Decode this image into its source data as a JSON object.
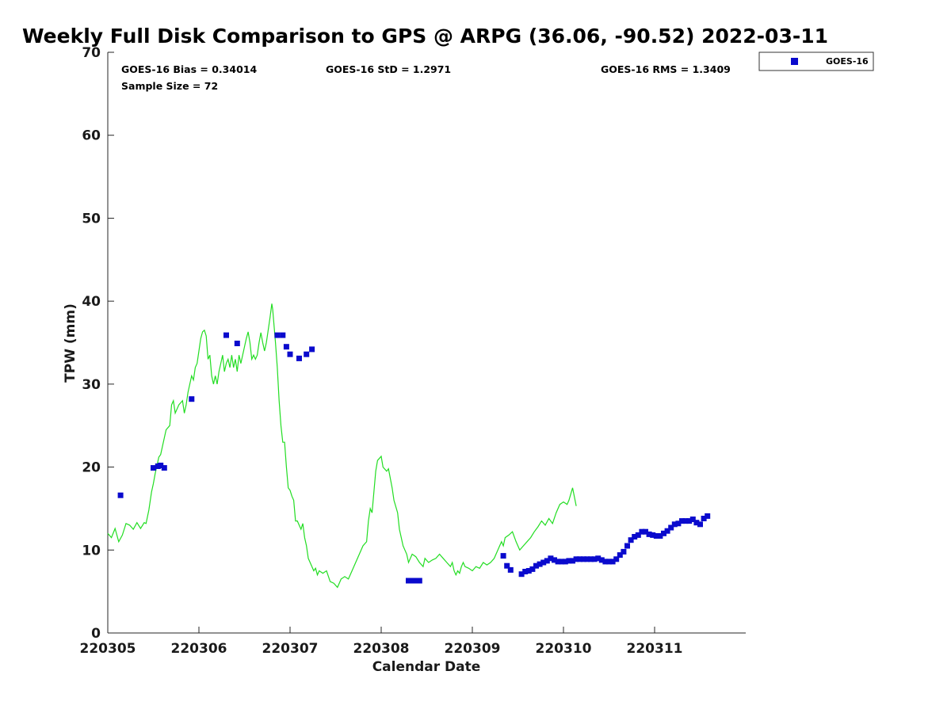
{
  "chart_data": {
    "type": "scatter",
    "title": "Weekly Full Disk Comparison to GPS @ ARPG (36.06, -90.52) 2022-03-11",
    "xlabel": "Calendar Date",
    "ylabel": "TPW (mm)",
    "xlim": [
      0,
      7
    ],
    "ylim": [
      0,
      70
    ],
    "yticks": [
      0,
      10,
      20,
      30,
      40,
      50,
      60,
      70
    ],
    "xticks": [
      {
        "value": 0,
        "label": "220305"
      },
      {
        "value": 1,
        "label": "220306"
      },
      {
        "value": 2,
        "label": "220307"
      },
      {
        "value": 3,
        "label": "220308"
      },
      {
        "value": 4,
        "label": "220309"
      },
      {
        "value": 5,
        "label": "220310"
      },
      {
        "value": 6,
        "label": "220311"
      }
    ],
    "stats": {
      "bias": "GOES-16 Bias = 0.34014",
      "std": "GOES-16 StD = 1.2971",
      "rms": "GOES-16 RMS = 1.3409",
      "sample_size": "Sample Size = 72"
    },
    "legend": {
      "placement": "top-right-outside",
      "entries": [
        {
          "name": "GOES-16",
          "color": "#0000cc",
          "marker": "square"
        }
      ]
    },
    "colors": {
      "goes": "#0a0acd",
      "gps_line": "#22dd22"
    },
    "gps_line": [
      [
        0.0,
        12.0
      ],
      [
        0.04,
        11.5
      ],
      [
        0.08,
        12.6
      ],
      [
        0.12,
        11.0
      ],
      [
        0.16,
        11.8
      ],
      [
        0.2,
        13.2
      ],
      [
        0.24,
        13.0
      ],
      [
        0.28,
        12.5
      ],
      [
        0.32,
        13.3
      ],
      [
        0.36,
        12.6
      ],
      [
        0.4,
        13.3
      ],
      [
        0.42,
        13.2
      ],
      [
        0.45,
        14.8
      ],
      [
        0.48,
        17.0
      ],
      [
        0.5,
        18.0
      ],
      [
        0.52,
        19.2
      ],
      [
        0.54,
        20.2
      ],
      [
        0.56,
        21.2
      ],
      [
        0.58,
        21.5
      ],
      [
        0.6,
        22.5
      ],
      [
        0.62,
        23.5
      ],
      [
        0.64,
        24.5
      ],
      [
        0.68,
        25.0
      ],
      [
        0.7,
        27.5
      ],
      [
        0.72,
        28.0
      ],
      [
        0.74,
        26.5
      ],
      [
        0.78,
        27.5
      ],
      [
        0.82,
        28.0
      ],
      [
        0.84,
        26.5
      ],
      [
        0.86,
        27.5
      ],
      [
        0.88,
        29.0
      ],
      [
        0.9,
        30.0
      ],
      [
        0.92,
        31.0
      ],
      [
        0.94,
        30.5
      ],
      [
        0.96,
        32.0
      ],
      [
        0.98,
        32.5
      ],
      [
        1.0,
        34.0
      ],
      [
        1.02,
        35.5
      ],
      [
        1.04,
        36.3
      ],
      [
        1.06,
        36.5
      ],
      [
        1.08,
        35.8
      ],
      [
        1.1,
        33.0
      ],
      [
        1.12,
        33.5
      ],
      [
        1.14,
        31.0
      ],
      [
        1.16,
        30.0
      ],
      [
        1.18,
        31.0
      ],
      [
        1.2,
        30.0
      ],
      [
        1.22,
        31.5
      ],
      [
        1.24,
        32.5
      ],
      [
        1.26,
        33.5
      ],
      [
        1.28,
        31.5
      ],
      [
        1.3,
        32.5
      ],
      [
        1.32,
        33.0
      ],
      [
        1.34,
        32.0
      ],
      [
        1.36,
        33.5
      ],
      [
        1.38,
        32.0
      ],
      [
        1.4,
        33.0
      ],
      [
        1.42,
        31.5
      ],
      [
        1.44,
        33.5
      ],
      [
        1.46,
        32.5
      ],
      [
        1.48,
        33.5
      ],
      [
        1.5,
        34.5
      ],
      [
        1.52,
        35.5
      ],
      [
        1.54,
        36.3
      ],
      [
        1.56,
        35.0
      ],
      [
        1.58,
        33.0
      ],
      [
        1.6,
        33.5
      ],
      [
        1.62,
        33.0
      ],
      [
        1.64,
        33.5
      ],
      [
        1.66,
        35.0
      ],
      [
        1.68,
        36.2
      ],
      [
        1.7,
        35.0
      ],
      [
        1.72,
        34.0
      ],
      [
        1.74,
        35.0
      ],
      [
        1.76,
        36.5
      ],
      [
        1.78,
        38.0
      ],
      [
        1.8,
        39.7
      ],
      [
        1.81,
        39.0
      ],
      [
        1.84,
        35.0
      ],
      [
        1.86,
        32.0
      ],
      [
        1.88,
        28.0
      ],
      [
        1.9,
        25.0
      ],
      [
        1.92,
        23.0
      ],
      [
        1.94,
        23.0
      ],
      [
        1.96,
        20.0
      ],
      [
        1.98,
        17.5
      ],
      [
        2.0,
        17.2
      ],
      [
        2.02,
        16.5
      ],
      [
        2.04,
        16.0
      ],
      [
        2.06,
        13.5
      ],
      [
        2.08,
        13.5
      ],
      [
        2.1,
        13.0
      ],
      [
        2.12,
        12.5
      ],
      [
        2.14,
        13.2
      ],
      [
        2.16,
        11.5
      ],
      [
        2.18,
        10.5
      ],
      [
        2.2,
        9.0
      ],
      [
        2.22,
        8.5
      ],
      [
        2.24,
        8.0
      ],
      [
        2.26,
        7.5
      ],
      [
        2.28,
        7.8
      ],
      [
        2.3,
        7.0
      ],
      [
        2.32,
        7.5
      ],
      [
        2.36,
        7.2
      ],
      [
        2.4,
        7.5
      ],
      [
        2.44,
        6.2
      ],
      [
        2.48,
        6.0
      ],
      [
        2.52,
        5.5
      ],
      [
        2.54,
        6.0
      ],
      [
        2.56,
        6.5
      ],
      [
        2.6,
        6.8
      ],
      [
        2.64,
        6.5
      ],
      [
        2.68,
        7.5
      ],
      [
        2.72,
        8.5
      ],
      [
        2.76,
        9.5
      ],
      [
        2.8,
        10.5
      ],
      [
        2.84,
        11.0
      ],
      [
        2.86,
        13.5
      ],
      [
        2.88,
        15.0
      ],
      [
        2.9,
        14.5
      ],
      [
        2.92,
        17.0
      ],
      [
        2.94,
        19.5
      ],
      [
        2.96,
        20.8
      ],
      [
        3.0,
        21.3
      ],
      [
        3.02,
        20.0
      ],
      [
        3.06,
        19.5
      ],
      [
        3.08,
        19.8
      ],
      [
        3.12,
        17.5
      ],
      [
        3.14,
        16.0
      ],
      [
        3.18,
        14.5
      ],
      [
        3.2,
        12.5
      ],
      [
        3.24,
        10.5
      ],
      [
        3.28,
        9.5
      ],
      [
        3.3,
        8.5
      ],
      [
        3.34,
        9.5
      ],
      [
        3.38,
        9.2
      ],
      [
        3.42,
        8.5
      ],
      [
        3.46,
        8.0
      ],
      [
        3.48,
        9.0
      ],
      [
        3.52,
        8.5
      ],
      [
        3.56,
        8.8
      ],
      [
        3.6,
        9.0
      ],
      [
        3.64,
        9.5
      ],
      [
        3.68,
        9.0
      ],
      [
        3.72,
        8.5
      ],
      [
        3.76,
        8.0
      ],
      [
        3.78,
        8.5
      ],
      [
        3.8,
        7.5
      ],
      [
        3.82,
        7.0
      ],
      [
        3.84,
        7.5
      ],
      [
        3.86,
        7.2
      ],
      [
        3.88,
        8.0
      ],
      [
        3.9,
        8.5
      ],
      [
        3.92,
        8.0
      ],
      [
        3.96,
        7.8
      ],
      [
        4.0,
        7.5
      ],
      [
        4.04,
        8.0
      ],
      [
        4.08,
        7.8
      ],
      [
        4.12,
        8.5
      ],
      [
        4.16,
        8.2
      ],
      [
        4.2,
        8.5
      ],
      [
        4.24,
        9.0
      ],
      [
        4.28,
        10.0
      ],
      [
        4.32,
        11.0
      ],
      [
        4.34,
        10.5
      ],
      [
        4.36,
        11.5
      ],
      [
        4.4,
        11.8
      ],
      [
        4.44,
        12.2
      ],
      [
        4.48,
        11.0
      ],
      [
        4.52,
        10.0
      ],
      [
        4.56,
        10.5
      ],
      [
        4.6,
        11.0
      ],
      [
        4.64,
        11.5
      ],
      [
        4.68,
        12.2
      ],
      [
        4.72,
        12.8
      ],
      [
        4.76,
        13.5
      ],
      [
        4.8,
        13.0
      ],
      [
        4.84,
        13.8
      ],
      [
        4.88,
        13.2
      ],
      [
        4.92,
        14.5
      ],
      [
        4.96,
        15.5
      ],
      [
        5.0,
        15.8
      ],
      [
        5.04,
        15.5
      ],
      [
        5.06,
        16.0
      ],
      [
        5.1,
        17.5
      ],
      [
        5.14,
        15.3
      ]
    ],
    "goes_points": [
      [
        0.14,
        16.6
      ],
      [
        0.5,
        19.9
      ],
      [
        0.55,
        20.1
      ],
      [
        0.58,
        20.2
      ],
      [
        0.62,
        19.9
      ],
      [
        0.92,
        28.2
      ],
      [
        1.3,
        35.9
      ],
      [
        1.42,
        34.9
      ],
      [
        1.86,
        35.9
      ],
      [
        1.92,
        35.9
      ],
      [
        1.96,
        34.5
      ],
      [
        2.0,
        33.6
      ],
      [
        2.1,
        33.1
      ],
      [
        2.18,
        33.6
      ],
      [
        2.24,
        34.2
      ],
      [
        3.3,
        6.3
      ],
      [
        3.34,
        6.3
      ],
      [
        3.38,
        6.3
      ],
      [
        3.42,
        6.3
      ],
      [
        4.34,
        9.3
      ],
      [
        4.38,
        8.1
      ],
      [
        4.42,
        7.6
      ],
      [
        4.54,
        7.1
      ],
      [
        4.58,
        7.4
      ],
      [
        4.62,
        7.5
      ],
      [
        4.66,
        7.7
      ],
      [
        4.7,
        8.1
      ],
      [
        4.74,
        8.3
      ],
      [
        4.78,
        8.5
      ],
      [
        4.82,
        8.7
      ],
      [
        4.86,
        9.0
      ],
      [
        4.9,
        8.8
      ],
      [
        4.94,
        8.6
      ],
      [
        4.98,
        8.6
      ],
      [
        5.02,
        8.6
      ],
      [
        5.06,
        8.7
      ],
      [
        5.1,
        8.7
      ],
      [
        5.14,
        8.9
      ],
      [
        5.18,
        8.9
      ],
      [
        5.22,
        8.9
      ],
      [
        5.26,
        8.9
      ],
      [
        5.3,
        8.9
      ],
      [
        5.34,
        8.9
      ],
      [
        5.38,
        9.0
      ],
      [
        5.42,
        8.8
      ],
      [
        5.46,
        8.6
      ],
      [
        5.5,
        8.6
      ],
      [
        5.54,
        8.6
      ],
      [
        5.58,
        8.9
      ],
      [
        5.62,
        9.4
      ],
      [
        5.66,
        9.8
      ],
      [
        5.7,
        10.5
      ],
      [
        5.74,
        11.2
      ],
      [
        5.78,
        11.6
      ],
      [
        5.82,
        11.8
      ],
      [
        5.86,
        12.2
      ],
      [
        5.9,
        12.2
      ],
      [
        5.94,
        11.9
      ],
      [
        5.98,
        11.8
      ],
      [
        6.02,
        11.7
      ],
      [
        6.06,
        11.7
      ],
      [
        6.1,
        12.0
      ],
      [
        6.14,
        12.3
      ],
      [
        6.18,
        12.7
      ],
      [
        6.22,
        13.1
      ],
      [
        6.26,
        13.2
      ],
      [
        6.3,
        13.5
      ],
      [
        6.34,
        13.5
      ],
      [
        6.38,
        13.5
      ],
      [
        6.42,
        13.7
      ],
      [
        6.46,
        13.3
      ],
      [
        6.5,
        13.1
      ],
      [
        6.54,
        13.8
      ],
      [
        6.58,
        14.1
      ]
    ]
  }
}
